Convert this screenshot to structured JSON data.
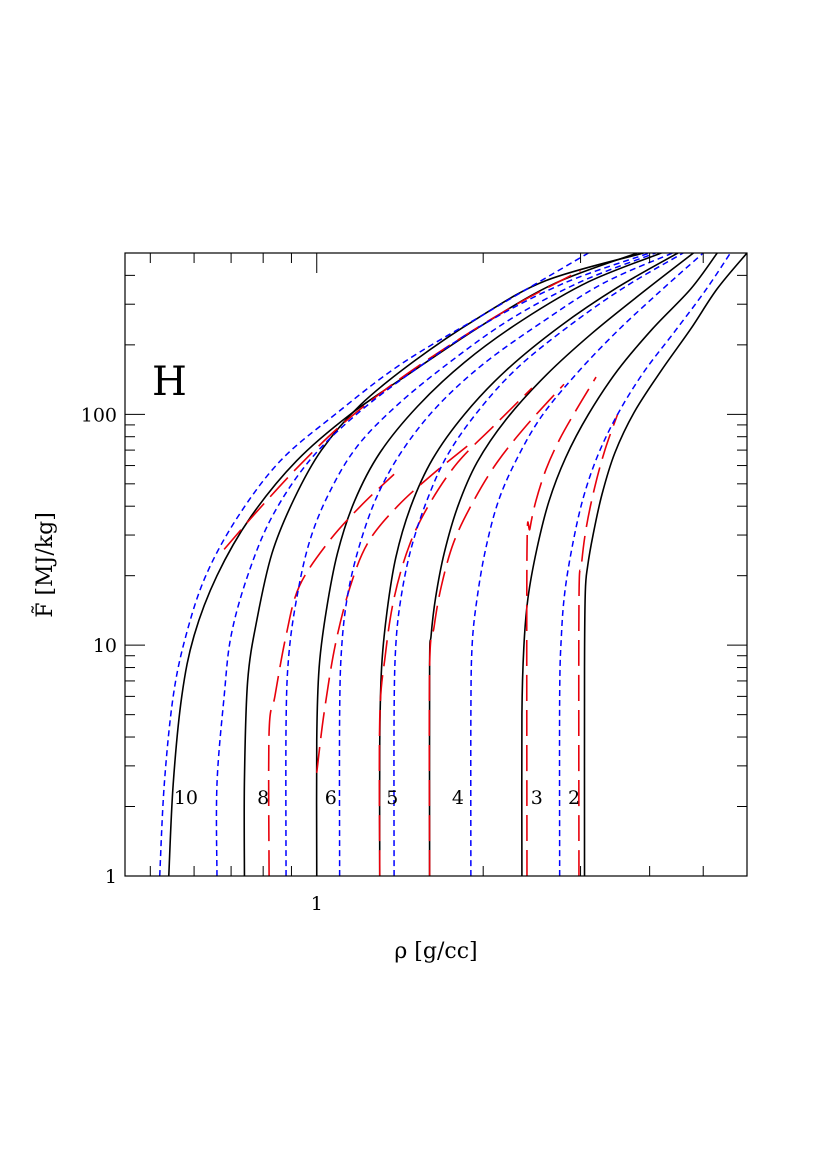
{
  "chart_data": {
    "type": "line",
    "panel_label": "H",
    "xlabel": "ρ [g/cc]",
    "ylabel": "F̃ [MJ/kg]",
    "xscale": "log",
    "yscale": "log",
    "xlim": [
      0.45,
      6.0
    ],
    "ylim": [
      1,
      500
    ],
    "x_tick_labels": [
      {
        "value": 1,
        "label": "1"
      }
    ],
    "y_tick_labels": [
      {
        "value": 1,
        "label": "1"
      },
      {
        "value": 10,
        "label": "10"
      },
      {
        "value": 100,
        "label": "100"
      }
    ],
    "grid": false,
    "curve_labels": [
      {
        "text": "10",
        "x": 0.58,
        "y": 2.2
      },
      {
        "text": "8",
        "x": 0.8,
        "y": 2.2
      },
      {
        "text": "6",
        "x": 1.06,
        "y": 2.2
      },
      {
        "text": "5",
        "x": 1.37,
        "y": 2.2
      },
      {
        "text": "4",
        "x": 1.8,
        "y": 2.2
      },
      {
        "text": "3",
        "x": 2.5,
        "y": 2.2
      },
      {
        "text": "2",
        "x": 2.92,
        "y": 2.2
      }
    ],
    "series": [
      {
        "style": "solid",
        "color": "#000000",
        "x": [
          0.54,
          0.55,
          0.57,
          0.6,
          0.66,
          0.76,
          0.92,
          1.15,
          1.5,
          2.0,
          2.7,
          3.8
        ],
        "y": [
          1,
          2.5,
          6,
          11,
          20,
          36,
          63,
          100,
          155,
          245,
          370,
          500
        ]
      },
      {
        "style": "solid",
        "color": "#000000",
        "x": [
          0.74,
          0.74,
          0.75,
          0.78,
          0.83,
          0.91,
          1.02,
          1.2,
          1.5,
          1.95,
          2.6,
          3.9
        ],
        "y": [
          1,
          2.6,
          7,
          13,
          25,
          43,
          70,
          110,
          170,
          260,
          380,
          500
        ]
      },
      {
        "style": "solid",
        "color": "#000000",
        "x": [
          1.0,
          1.0,
          1.01,
          1.04,
          1.09,
          1.17,
          1.3,
          1.52,
          1.85,
          2.35,
          3.1,
          4.2
        ],
        "y": [
          1,
          3.9,
          8,
          14,
          25,
          42,
          68,
          108,
          168,
          255,
          375,
          500
        ]
      },
      {
        "style": "solid",
        "color": "#000000",
        "x": [
          1.3,
          1.3,
          1.31,
          1.34,
          1.39,
          1.48,
          1.62,
          1.85,
          2.2,
          2.75,
          3.5,
          4.5
        ],
        "y": [
          1,
          3.8,
          8,
          14,
          24,
          40,
          64,
          100,
          155,
          240,
          355,
          500
        ]
      },
      {
        "style": "solid",
        "color": "#000000",
        "x": [
          1.6,
          1.6,
          1.61,
          1.64,
          1.7,
          1.8,
          1.95,
          2.2,
          2.6,
          3.15,
          3.9,
          4.8
        ],
        "y": [
          1,
          8,
          11,
          16,
          25,
          40,
          62,
          95,
          148,
          225,
          340,
          500
        ]
      },
      {
        "style": "solid",
        "color": "#000000",
        "x": [
          2.35,
          2.35,
          2.37,
          2.41,
          2.5,
          2.63,
          2.82,
          3.1,
          3.5,
          4.05,
          4.75,
          5.3
        ],
        "y": [
          1,
          5,
          10,
          16,
          26,
          42,
          65,
          100,
          155,
          235,
          350,
          500
        ]
      },
      {
        "style": "solid",
        "color": "#000000",
        "x": [
          3.05,
          3.05,
          3.06,
          3.09,
          3.16,
          3.28,
          3.46,
          3.75,
          4.2,
          4.75,
          5.3,
          6.0
        ],
        "y": [
          1,
          8,
          17,
          22,
          30,
          45,
          68,
          102,
          155,
          235,
          350,
          500
        ]
      },
      {
        "style": "dash",
        "color": "#e8000b",
        "x": [
          0.82,
          0.82,
          0.84,
          0.88,
          0.93,
          1.05,
          1.2,
          1.38
        ],
        "y": [
          1,
          4.2,
          6,
          11,
          18,
          28,
          40,
          55
        ]
      },
      {
        "style": "dash",
        "color": "#e8000b",
        "x": [
          1.0,
          1.03,
          1.08,
          1.15,
          1.24,
          1.4,
          1.62,
          1.9
        ],
        "y": [
          2.8,
          5,
          10,
          18,
          28,
          40,
          55,
          75
        ]
      },
      {
        "style": "dash",
        "color": "#e8000b",
        "x": [
          1.3,
          1.3,
          1.33,
          1.38,
          1.47,
          1.6,
          1.8,
          2.1,
          2.45
        ],
        "y": [
          1,
          4.8,
          9,
          16,
          27,
          41,
          62,
          90,
          130
        ]
      },
      {
        "style": "dash",
        "color": "#e8000b",
        "x": [
          1.6,
          1.6,
          1.63,
          1.68,
          1.77,
          1.92,
          2.12,
          2.4,
          2.8
        ],
        "y": [
          1,
          8,
          12,
          18,
          28,
          42,
          62,
          90,
          135
        ]
      },
      {
        "style": "dash",
        "color": "#e8000b",
        "x": [
          2.4,
          2.4,
          2.43,
          2.49,
          2.6,
          2.75,
          2.95,
          3.2
        ],
        "y": [
          1,
          25,
          32,
          42,
          58,
          78,
          105,
          145
        ]
      },
      {
        "style": "dash",
        "color": "#e8000b",
        "x": [
          2.98,
          2.98,
          3.01,
          3.07,
          3.18,
          3.32,
          3.5
        ],
        "y": [
          1,
          15,
          22,
          32,
          48,
          70,
          100
        ]
      },
      {
        "style": "dash",
        "color": "#e8000b",
        "x": [
          0.68,
          0.78,
          0.93,
          1.12,
          1.4,
          1.8,
          2.3,
          3.0
        ],
        "y": [
          26,
          38,
          60,
          92,
          140,
          210,
          300,
          420
        ]
      },
      {
        "style": "dot",
        "color": "#0000ff",
        "x": [
          0.52,
          0.53,
          0.55,
          0.58,
          0.63,
          0.72,
          0.86,
          1.08,
          1.42,
          2.0,
          3.1
        ],
        "y": [
          1,
          2.5,
          6,
          11,
          20,
          36,
          63,
          100,
          165,
          270,
          500
        ]
      },
      {
        "style": "dot",
        "color": "#0000ff",
        "x": [
          0.66,
          0.66,
          0.68,
          0.7,
          0.75,
          0.83,
          0.97,
          1.18,
          1.5,
          2.0,
          2.8,
          4.0
        ],
        "y": [
          1,
          2.5,
          6,
          11,
          20,
          36,
          63,
          100,
          155,
          245,
          370,
          500
        ]
      },
      {
        "style": "dot",
        "color": "#0000ff",
        "x": [
          0.88,
          0.88,
          0.89,
          0.92,
          0.97,
          1.05,
          1.18,
          1.4,
          1.75,
          2.25,
          3.0,
          4.1
        ],
        "y": [
          1,
          4.5,
          9,
          16,
          28,
          45,
          72,
          110,
          170,
          260,
          375,
          500
        ]
      },
      {
        "style": "dot",
        "color": "#0000ff",
        "x": [
          1.1,
          1.1,
          1.11,
          1.14,
          1.2,
          1.29,
          1.43,
          1.65,
          2.0,
          2.55,
          3.3,
          4.4
        ],
        "y": [
          1,
          5,
          10,
          17,
          28,
          45,
          70,
          108,
          165,
          250,
          370,
          500
        ]
      },
      {
        "style": "dot",
        "color": "#0000ff",
        "x": [
          1.38,
          1.38,
          1.39,
          1.42,
          1.48,
          1.58,
          1.72,
          1.95,
          2.3,
          2.85,
          3.6,
          4.6
        ],
        "y": [
          1,
          5,
          10,
          16,
          26,
          42,
          66,
          102,
          158,
          240,
          355,
          500
        ]
      },
      {
        "style": "dot",
        "color": "#0000ff",
        "x": [
          1.9,
          1.9,
          1.91,
          1.95,
          2.02,
          2.13,
          2.3,
          2.55,
          2.95,
          3.5,
          4.2,
          5.0
        ],
        "y": [
          1,
          5,
          10,
          16,
          26,
          42,
          64,
          98,
          150,
          230,
          345,
          500
        ]
      },
      {
        "style": "dot",
        "color": "#0000ff",
        "x": [
          2.75,
          2.75,
          2.77,
          2.81,
          2.9,
          3.03,
          3.22,
          3.5,
          3.9,
          4.45,
          5.05,
          5.6
        ],
        "y": [
          1,
          6,
          11,
          17,
          27,
          43,
          66,
          100,
          152,
          230,
          345,
          500
        ]
      }
    ]
  }
}
